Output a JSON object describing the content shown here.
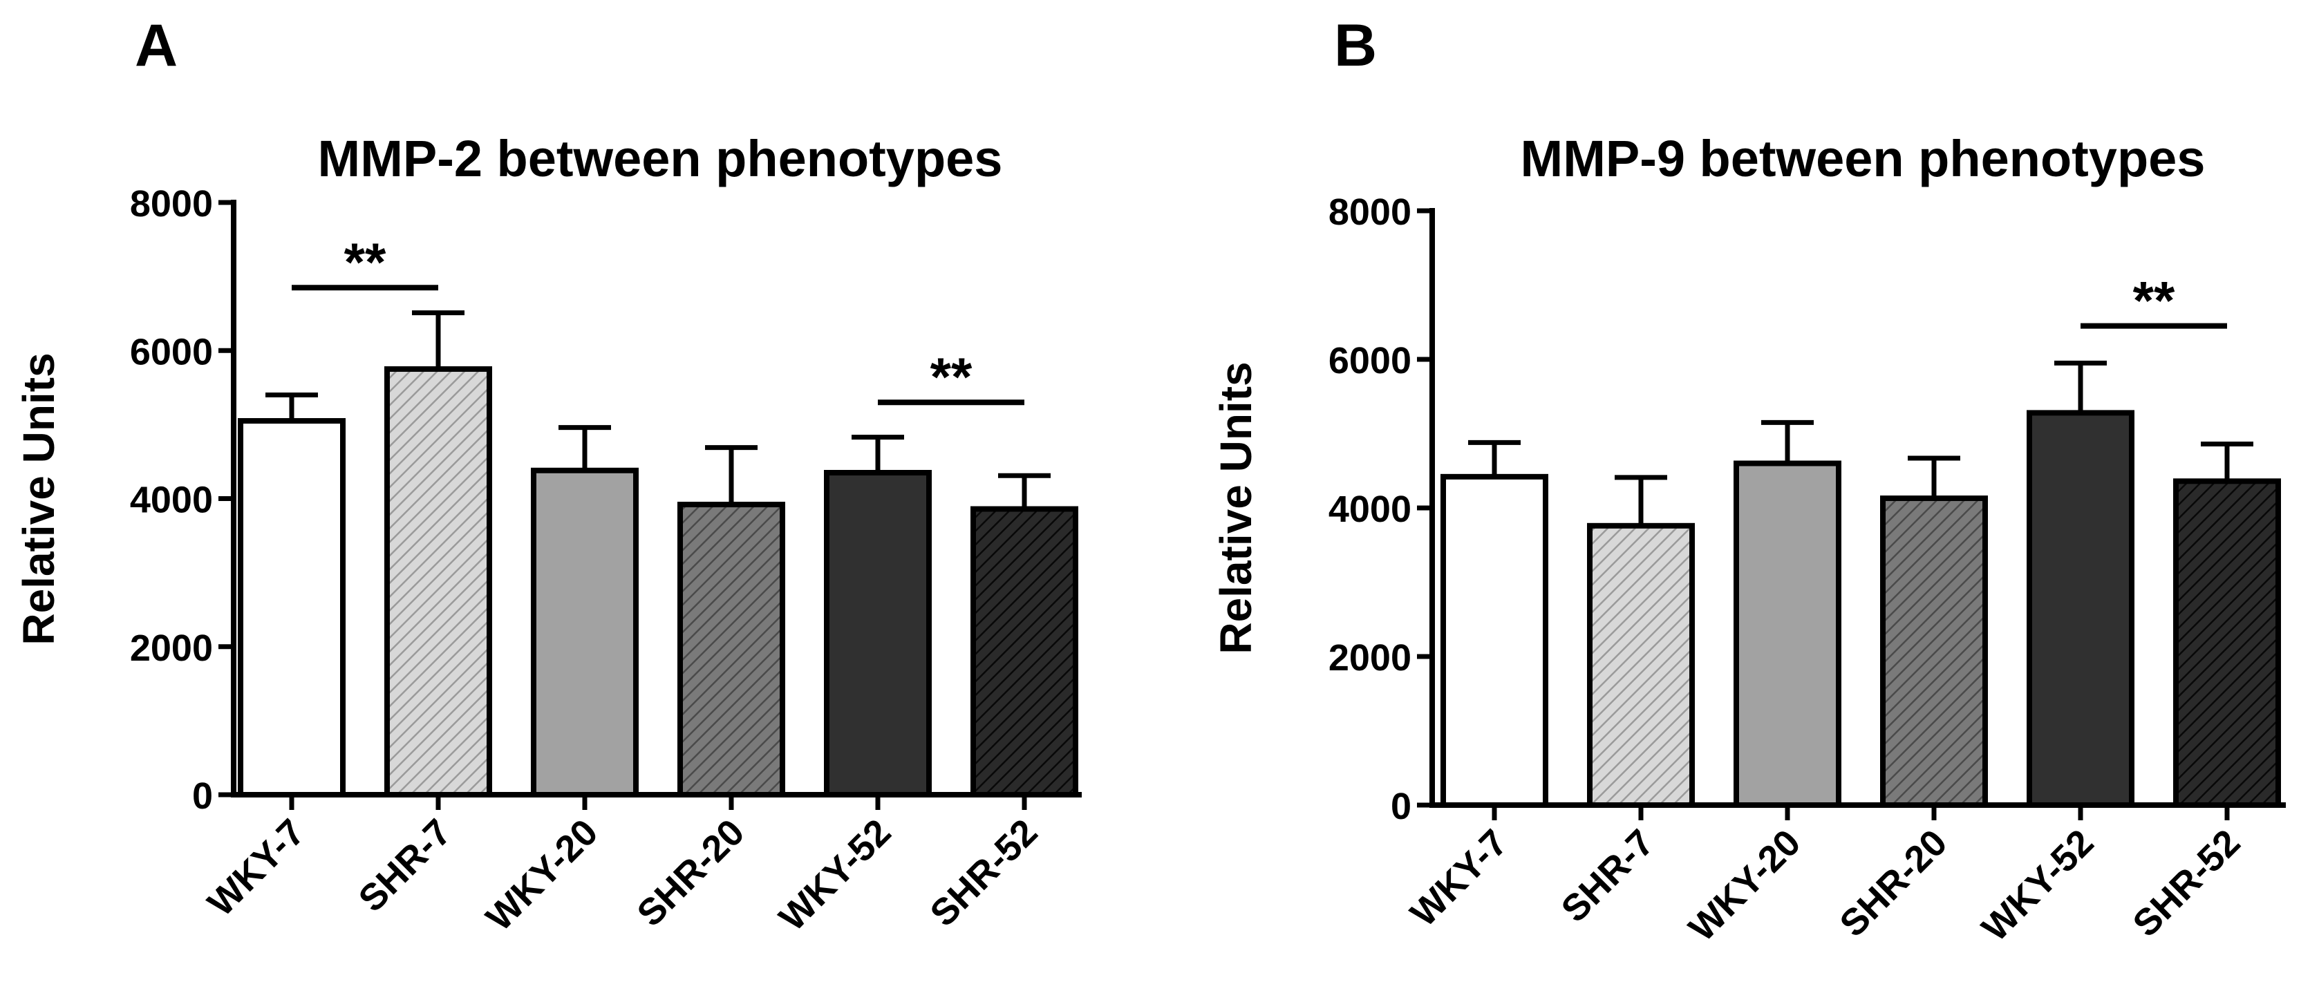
{
  "chart_data": [
    {
      "type": "bar",
      "panel_label": "A",
      "title": "MMP-2 between phenotypes",
      "xlabel": "",
      "ylabel": "Relative Units",
      "ylim": [
        0,
        8000
      ],
      "yticks": [
        "0",
        "2000",
        "4000",
        "6000",
        "8000"
      ],
      "categories": [
        "WKY-7",
        "SHR-7",
        "WKY-20",
        "SHR-20",
        "WKY-52",
        "SHR-52"
      ],
      "values": [
        5050,
        5750,
        4380,
        3920,
        4350,
        3860
      ],
      "errors": [
        350,
        760,
        580,
        770,
        480,
        450
      ],
      "significance": [
        {
          "from": 0,
          "to": 1,
          "label": "**",
          "y": 6850
        },
        {
          "from": 4,
          "to": 5,
          "label": "**",
          "y": 5300
        }
      ],
      "grid": false
    },
    {
      "type": "bar",
      "panel_label": "B",
      "title": "MMP-9 between phenotypes",
      "xlabel": "",
      "ylabel": "Relative Units",
      "ylim": [
        0,
        8000
      ],
      "yticks": [
        "0",
        "2000",
        "4000",
        "6000",
        "8000"
      ],
      "categories": [
        "WKY-7",
        "SHR-7",
        "WKY-20",
        "SHR-20",
        "WKY-52",
        "SHR-52"
      ],
      "values": [
        4420,
        3760,
        4600,
        4130,
        5280,
        4360
      ],
      "errors": [
        460,
        650,
        550,
        540,
        670,
        500
      ],
      "significance": [
        {
          "from": 4,
          "to": 5,
          "label": "**",
          "y": 6450
        }
      ],
      "grid": false
    }
  ],
  "colors": {
    "axis": "#000000",
    "wky7_fill": "#ffffff",
    "shr7_fill": "#d7d7d7",
    "wky20_fill": "#a2a2a2",
    "shr20_fill": "#6e6e6e",
    "wky52_fill": "#303030",
    "shr52_fill": "#1a1a1a"
  }
}
